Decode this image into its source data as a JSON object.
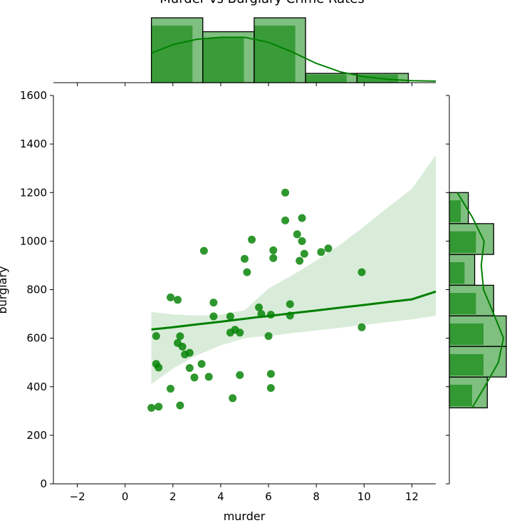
{
  "chart_data": {
    "type": "scatter",
    "title": "Murder vs Burglary Crime Rates",
    "xlabel": "murder",
    "ylabel": "burglary",
    "xlim": [
      -3,
      13
    ],
    "ylim": [
      0,
      1600
    ],
    "xticks": [
      -2,
      0,
      2,
      4,
      6,
      8,
      10,
      12
    ],
    "yticks": [
      0,
      200,
      400,
      600,
      800,
      1000,
      1200,
      1400,
      1600
    ],
    "color": "#008000",
    "points": [
      {
        "x": 1.1,
        "y": 313
      },
      {
        "x": 1.4,
        "y": 318
      },
      {
        "x": 2.3,
        "y": 323
      },
      {
        "x": 1.9,
        "y": 392
      },
      {
        "x": 1.3,
        "y": 494
      },
      {
        "x": 1.4,
        "y": 479
      },
      {
        "x": 1.3,
        "y": 609
      },
      {
        "x": 2.2,
        "y": 580
      },
      {
        "x": 2.3,
        "y": 608
      },
      {
        "x": 2.4,
        "y": 565
      },
      {
        "x": 2.5,
        "y": 533
      },
      {
        "x": 2.7,
        "y": 540
      },
      {
        "x": 2.7,
        "y": 477
      },
      {
        "x": 2.9,
        "y": 438
      },
      {
        "x": 1.9,
        "y": 768
      },
      {
        "x": 2.2,
        "y": 758
      },
      {
        "x": 3.2,
        "y": 494
      },
      {
        "x": 3.5,
        "y": 441
      },
      {
        "x": 3.3,
        "y": 960
      },
      {
        "x": 3.7,
        "y": 747
      },
      {
        "x": 3.7,
        "y": 690
      },
      {
        "x": 4.4,
        "y": 690
      },
      {
        "x": 4.4,
        "y": 623
      },
      {
        "x": 4.6,
        "y": 635
      },
      {
        "x": 4.8,
        "y": 623
      },
      {
        "x": 4.8,
        "y": 448
      },
      {
        "x": 4.5,
        "y": 353
      },
      {
        "x": 5.3,
        "y": 1006
      },
      {
        "x": 5.0,
        "y": 927
      },
      {
        "x": 5.1,
        "y": 872
      },
      {
        "x": 5.6,
        "y": 727
      },
      {
        "x": 5.7,
        "y": 700
      },
      {
        "x": 6.0,
        "y": 609
      },
      {
        "x": 6.1,
        "y": 697
      },
      {
        "x": 6.1,
        "y": 453
      },
      {
        "x": 6.1,
        "y": 395
      },
      {
        "x": 6.2,
        "y": 962
      },
      {
        "x": 6.2,
        "y": 930
      },
      {
        "x": 6.7,
        "y": 1200
      },
      {
        "x": 6.7,
        "y": 1085
      },
      {
        "x": 6.9,
        "y": 740
      },
      {
        "x": 6.9,
        "y": 693
      },
      {
        "x": 7.2,
        "y": 1028
      },
      {
        "x": 7.4,
        "y": 1095
      },
      {
        "x": 7.4,
        "y": 1000
      },
      {
        "x": 7.5,
        "y": 948
      },
      {
        "x": 7.3,
        "y": 919
      },
      {
        "x": 8.2,
        "y": 955
      },
      {
        "x": 8.5,
        "y": 970
      },
      {
        "x": 9.9,
        "y": 872
      },
      {
        "x": 9.9,
        "y": 645
      }
    ],
    "regression": {
      "x": [
        1.1,
        2,
        3,
        4,
        5,
        5.5,
        6,
        7,
        8,
        9,
        10,
        11,
        12,
        13
      ],
      "y": [
        636,
        645,
        657,
        668,
        680,
        686,
        691,
        703,
        714,
        726,
        737,
        749,
        760,
        792
      ],
      "ci_lower": [
        410,
        475,
        530,
        570,
        600,
        606,
        609,
        621,
        632,
        643,
        655,
        666,
        678,
        692
      ],
      "ci_upper": [
        708,
        698,
        693,
        697,
        715,
        760,
        805,
        860,
        920,
        985,
        1060,
        1140,
        1215,
        1355
      ]
    },
    "marginal_x": {
      "bins": [
        {
          "start": 1.1,
          "end": 3.25,
          "count": 14
        },
        {
          "start": 3.25,
          "end": 5.4,
          "count": 11
        },
        {
          "start": 5.4,
          "end": 7.55,
          "count": 14
        },
        {
          "start": 7.55,
          "end": 9.7,
          "count": 2
        },
        {
          "start": 9.7,
          "end": 11.85,
          "count": 2
        }
      ],
      "max_count": 14,
      "kde": [
        {
          "x": 1.1,
          "y": 0.6
        },
        {
          "x": 2,
          "y": 0.77
        },
        {
          "x": 3,
          "y": 0.88
        },
        {
          "x": 4,
          "y": 0.92
        },
        {
          "x": 5,
          "y": 0.92
        },
        {
          "x": 6,
          "y": 0.82
        },
        {
          "x": 7,
          "y": 0.62
        },
        {
          "x": 8,
          "y": 0.39
        },
        {
          "x": 9,
          "y": 0.22
        },
        {
          "x": 10,
          "y": 0.12
        },
        {
          "x": 11,
          "y": 0.07
        },
        {
          "x": 12,
          "y": 0.04
        },
        {
          "x": 13,
          "y": 0.03
        }
      ]
    },
    "marginal_y": {
      "bins": [
        {
          "start": 313,
          "end": 440,
          "count": 6
        },
        {
          "start": 440,
          "end": 566,
          "count": 9
        },
        {
          "start": 566,
          "end": 692,
          "count": 9
        },
        {
          "start": 692,
          "end": 818,
          "count": 7
        },
        {
          "start": 818,
          "end": 945,
          "count": 4
        },
        {
          "start": 945,
          "end": 1072,
          "count": 7
        },
        {
          "start": 1072,
          "end": 1200,
          "count": 3
        }
      ],
      "max_count": 9,
      "kde": [
        {
          "y": 313,
          "x": 0.4
        },
        {
          "y": 400,
          "x": 0.62
        },
        {
          "y": 500,
          "x": 0.86
        },
        {
          "y": 600,
          "x": 0.95
        },
        {
          "y": 700,
          "x": 0.78
        },
        {
          "y": 800,
          "x": 0.6
        },
        {
          "y": 900,
          "x": 0.56
        },
        {
          "y": 1000,
          "x": 0.61
        },
        {
          "y": 1100,
          "x": 0.4
        },
        {
          "y": 1200,
          "x": 0.14
        }
      ]
    }
  }
}
